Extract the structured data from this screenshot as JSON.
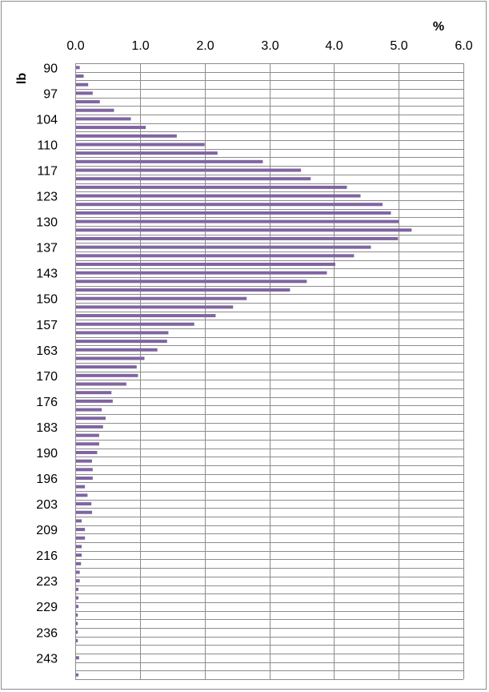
{
  "chart_data": {
    "type": "bar",
    "orientation": "horizontal",
    "x_unit": "%",
    "y_unit": "lb",
    "xlim": [
      0,
      6
    ],
    "x_ticks": [
      "0.0",
      "1.0",
      "2.0",
      "3.0",
      "4.0",
      "5.0",
      "6.0"
    ],
    "y_tick_labels": [
      "90",
      "97",
      "104",
      "110",
      "117",
      "123",
      "130",
      "137",
      "143",
      "150",
      "157",
      "163",
      "170",
      "176",
      "183",
      "190",
      "196",
      "203",
      "209",
      "216",
      "223",
      "229",
      "236",
      "243"
    ],
    "grid": true,
    "series_color": "#8064A2",
    "values": [
      0.07,
      0.13,
      0.2,
      0.27,
      0.38,
      0.6,
      0.86,
      1.09,
      1.57,
      2.0,
      2.2,
      2.9,
      3.49,
      3.64,
      4.2,
      4.41,
      4.75,
      4.88,
      5.0,
      5.2,
      4.99,
      4.57,
      4.31,
      4.02,
      3.89,
      3.58,
      3.32,
      2.65,
      2.44,
      2.17,
      1.84,
      1.44,
      1.42,
      1.27,
      1.07,
      0.95,
      0.97,
      0.79,
      0.56,
      0.58,
      0.41,
      0.47,
      0.43,
      0.37,
      0.37,
      0.34,
      0.26,
      0.27,
      0.27,
      0.15,
      0.19,
      0.25,
      0.26,
      0.1,
      0.15,
      0.15,
      0.1,
      0.1,
      0.09,
      0.07,
      0.07,
      0.05,
      0.05,
      0.05,
      0.04,
      0.04,
      0.04,
      0.04,
      0.01,
      0.06,
      0.01,
      0.05
    ]
  }
}
